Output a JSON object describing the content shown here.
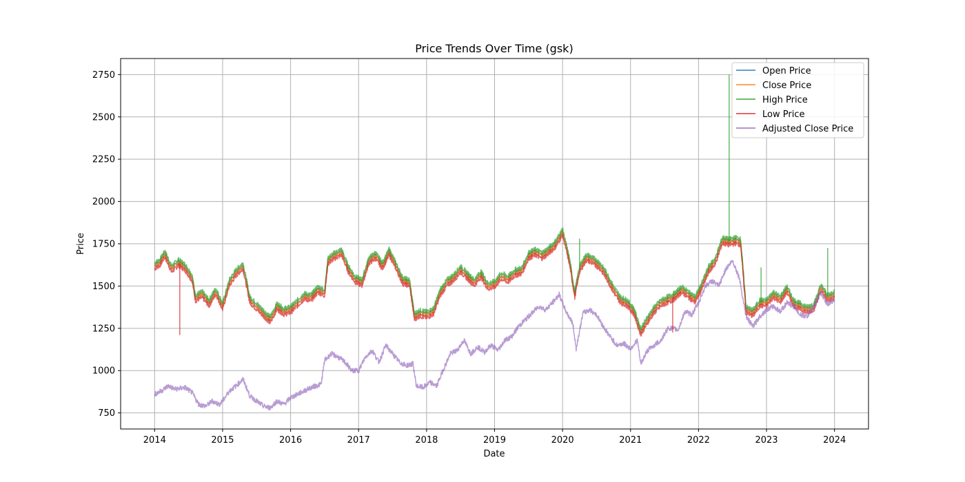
{
  "chart_data": {
    "type": "line",
    "title": "Price Trends Over Time (gsk)",
    "xlabel": "Date",
    "ylabel": "Price",
    "xlim": [
      2013.5,
      2024.5
    ],
    "ylim": [
      655,
      2845
    ],
    "x_ticks": [
      2014,
      2015,
      2016,
      2017,
      2018,
      2019,
      2020,
      2021,
      2022,
      2023,
      2024
    ],
    "x_tick_labels": [
      "2014",
      "2015",
      "2016",
      "2017",
      "2018",
      "2019",
      "2020",
      "2021",
      "2022",
      "2023",
      "2024"
    ],
    "y_ticks": [
      750,
      1000,
      1250,
      1500,
      1750,
      2000,
      2250,
      2500,
      2750
    ],
    "y_tick_labels": [
      "750",
      "1000",
      "1250",
      "1500",
      "1750",
      "2000",
      "2250",
      "2500",
      "2750"
    ],
    "grid": true,
    "legend_position": "top-right",
    "series": [
      {
        "name": "Open Price",
        "color": "#1f77b4"
      },
      {
        "name": "Close Price",
        "color": "#ff7f0e"
      },
      {
        "name": "High Price",
        "color": "#2ca02c"
      },
      {
        "name": "Low Price",
        "color": "#d62728"
      },
      {
        "name": "Adjusted Close Price",
        "color": "#9467bd"
      }
    ],
    "close_x": [
      2014.0,
      2014.08,
      2014.15,
      2014.25,
      2014.35,
      2014.45,
      2014.55,
      2014.6,
      2014.7,
      2014.8,
      2014.9,
      2015.0,
      2015.1,
      2015.2,
      2015.3,
      2015.4,
      2015.5,
      2015.6,
      2015.7,
      2015.8,
      2015.9,
      2016.0,
      2016.1,
      2016.2,
      2016.3,
      2016.4,
      2016.5,
      2016.55,
      2016.65,
      2016.75,
      2016.85,
      2016.95,
      2017.05,
      2017.15,
      2017.25,
      2017.35,
      2017.45,
      2017.55,
      2017.65,
      2017.75,
      2017.82,
      2017.9,
      2018.0,
      2018.1,
      2018.2,
      2018.3,
      2018.4,
      2018.5,
      2018.6,
      2018.7,
      2018.8,
      2018.9,
      2019.0,
      2019.1,
      2019.2,
      2019.3,
      2019.4,
      2019.5,
      2019.6,
      2019.7,
      2019.8,
      2019.9,
      2020.0,
      2020.1,
      2020.18,
      2020.25,
      2020.35,
      2020.45,
      2020.55,
      2020.65,
      2020.75,
      2020.85,
      2020.95,
      2021.05,
      2021.15,
      2021.25,
      2021.35,
      2021.45,
      2021.55,
      2021.65,
      2021.75,
      2021.85,
      2021.95,
      2022.05,
      2022.15,
      2022.25,
      2022.35,
      2022.45,
      2022.55,
      2022.62,
      2022.7,
      2022.8,
      2022.9,
      2023.0,
      2023.1,
      2023.2,
      2023.3,
      2023.4,
      2023.5,
      2023.6,
      2023.7,
      2023.8,
      2023.9,
      2024.0
    ],
    "close_y": [
      1620,
      1640,
      1690,
      1600,
      1640,
      1610,
      1550,
      1430,
      1450,
      1400,
      1470,
      1380,
      1520,
      1580,
      1620,
      1420,
      1380,
      1340,
      1300,
      1380,
      1350,
      1360,
      1400,
      1440,
      1430,
      1480,
      1460,
      1650,
      1680,
      1700,
      1600,
      1540,
      1520,
      1650,
      1680,
      1620,
      1700,
      1620,
      1530,
      1520,
      1320,
      1340,
      1330,
      1350,
      1460,
      1520,
      1550,
      1600,
      1560,
      1520,
      1570,
      1500,
      1510,
      1560,
      1540,
      1580,
      1590,
      1680,
      1700,
      1680,
      1710,
      1750,
      1820,
      1650,
      1450,
      1600,
      1670,
      1650,
      1620,
      1560,
      1480,
      1420,
      1400,
      1350,
      1230,
      1300,
      1360,
      1400,
      1420,
      1440,
      1480,
      1450,
      1420,
      1500,
      1600,
      1650,
      1770,
      1760,
      1770,
      1760,
      1360,
      1340,
      1400,
      1400,
      1450,
      1420,
      1480,
      1400,
      1380,
      1360,
      1380,
      1490,
      1430,
      1450
    ],
    "adj_x": [
      2014.0,
      2014.1,
      2014.2,
      2014.3,
      2014.45,
      2014.55,
      2014.65,
      2014.75,
      2014.85,
      2014.95,
      2015.0,
      2015.1,
      2015.2,
      2015.3,
      2015.4,
      2015.5,
      2015.6,
      2015.7,
      2015.8,
      2015.9,
      2016.0,
      2016.15,
      2016.3,
      2016.45,
      2016.5,
      2016.6,
      2016.7,
      2016.8,
      2016.9,
      2017.0,
      2017.1,
      2017.2,
      2017.3,
      2017.4,
      2017.5,
      2017.6,
      2017.7,
      2017.8,
      2017.85,
      2017.95,
      2018.05,
      2018.15,
      2018.25,
      2018.35,
      2018.45,
      2018.55,
      2018.65,
      2018.75,
      2018.85,
      2018.95,
      2019.05,
      2019.15,
      2019.25,
      2019.35,
      2019.45,
      2019.55,
      2019.65,
      2019.75,
      2019.85,
      2019.95,
      2020.05,
      2020.15,
      2020.2,
      2020.3,
      2020.4,
      2020.5,
      2020.6,
      2020.7,
      2020.8,
      2020.9,
      2021.0,
      2021.1,
      2021.15,
      2021.25,
      2021.35,
      2021.45,
      2021.55,
      2021.62,
      2021.7,
      2021.8,
      2021.9,
      2022.0,
      2022.1,
      2022.2,
      2022.3,
      2022.4,
      2022.5,
      2022.6,
      2022.7,
      2022.8,
      2022.9,
      2023.0,
      2023.1,
      2023.2,
      2023.3,
      2023.4,
      2023.5,
      2023.6,
      2023.7,
      2023.8,
      2023.9,
      2024.0
    ],
    "adj_y": [
      860,
      880,
      910,
      890,
      900,
      870,
      800,
      790,
      820,
      800,
      820,
      880,
      910,
      950,
      850,
      820,
      790,
      780,
      820,
      800,
      840,
      870,
      900,
      920,
      1060,
      1100,
      1080,
      1050,
      1000,
      1000,
      1080,
      1120,
      1050,
      1150,
      1100,
      1050,
      1030,
      1040,
      910,
      900,
      930,
      910,
      1010,
      1100,
      1120,
      1180,
      1100,
      1140,
      1110,
      1150,
      1120,
      1180,
      1200,
      1260,
      1300,
      1340,
      1380,
      1360,
      1400,
      1450,
      1350,
      1280,
      1130,
      1340,
      1360,
      1330,
      1260,
      1200,
      1150,
      1160,
      1130,
      1180,
      1040,
      1120,
      1150,
      1180,
      1250,
      1250,
      1240,
      1350,
      1330,
      1400,
      1500,
      1530,
      1500,
      1600,
      1650,
      1550,
      1320,
      1260,
      1320,
      1360,
      1380,
      1350,
      1400,
      1380,
      1330,
      1320,
      1380,
      1460,
      1390,
      1420
    ],
    "spikes": [
      {
        "series": "High Price",
        "x": 2022.45,
        "y": 2750
      },
      {
        "series": "High Price",
        "x": 2022.92,
        "y": 1610
      },
      {
        "series": "High Price",
        "x": 2023.9,
        "y": 1725
      },
      {
        "series": "High Price",
        "x": 2020.25,
        "y": 1780
      },
      {
        "series": "Low Price",
        "x": 2014.37,
        "y": 1210
      },
      {
        "series": "Low Price",
        "x": 2021.62,
        "y": 1225
      }
    ]
  }
}
